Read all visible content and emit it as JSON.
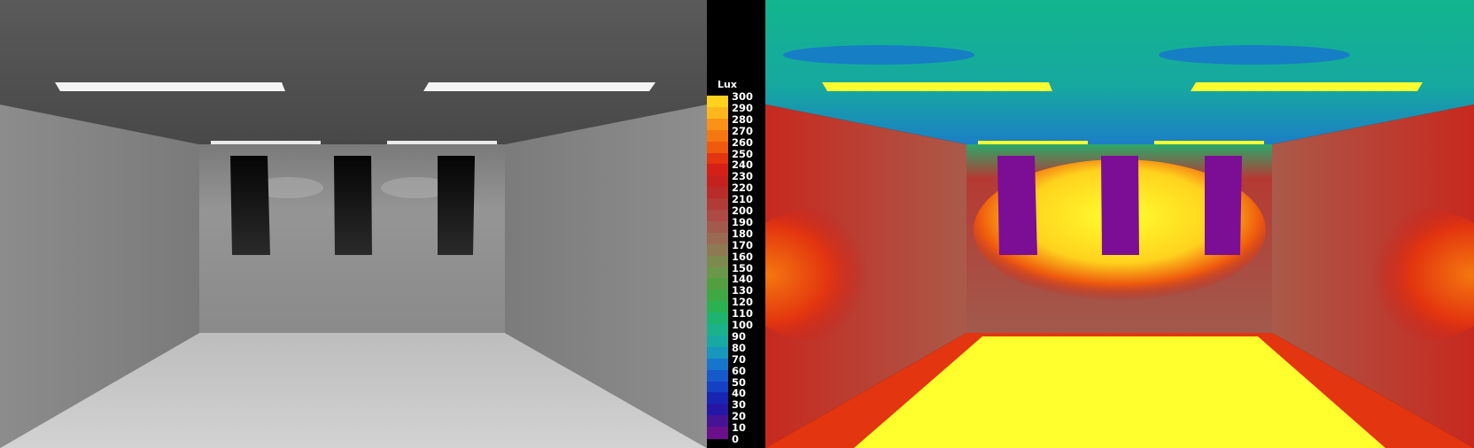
{
  "legend": {
    "unit_label": "Lux",
    "ticks": [
      "300",
      "290",
      "280",
      "270",
      "260",
      "250",
      "240",
      "230",
      "220",
      "210",
      "200",
      "190",
      "180",
      "170",
      "160",
      "150",
      "140",
      "130",
      "120",
      "110",
      "100",
      "90",
      "80",
      "70",
      "60",
      "50",
      "40",
      "30",
      "20",
      "10",
      "0"
    ],
    "colors": [
      "#ffd21e",
      "#fbb71c",
      "#f99216",
      "#f5770f",
      "#ef5a0d",
      "#e3350f",
      "#d52018",
      "#c5211f",
      "#b92c2a",
      "#b23a37",
      "#ac4a43",
      "#a15a4c",
      "#9a6a52",
      "#8e7a52",
      "#7d8a4e",
      "#6a984a",
      "#549e42",
      "#3ea844",
      "#2ab252",
      "#1cb46e",
      "#1ab28a",
      "#17aaa3",
      "#1697bb",
      "#1676cd",
      "#1659cb",
      "#1540c4",
      "#1725b2",
      "#2417a6",
      "#471396",
      "#69108a"
    ]
  }
}
